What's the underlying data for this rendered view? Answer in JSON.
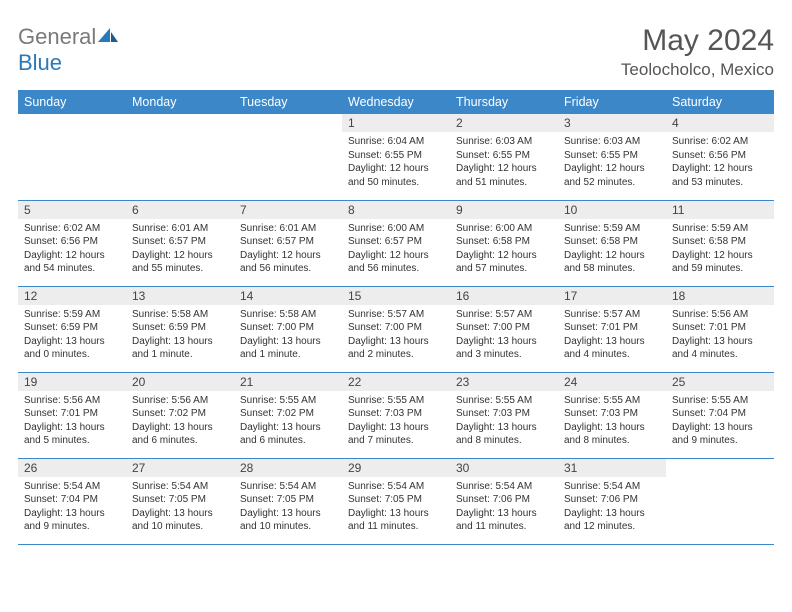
{
  "logo": {
    "textGray": "General",
    "textBlue": "Blue"
  },
  "title": "May 2024",
  "subtitle": "Teolocholco, Mexico",
  "colors": {
    "headerBg": "#3b87c8",
    "dayNumBg": "#ededed",
    "borderColor": "#3b87c8"
  },
  "weekdays": [
    "Sunday",
    "Monday",
    "Tuesday",
    "Wednesday",
    "Thursday",
    "Friday",
    "Saturday"
  ],
  "weeks": [
    [
      null,
      null,
      null,
      {
        "n": "1",
        "sr": "Sunrise: 6:04 AM",
        "ss": "Sunset: 6:55 PM",
        "d1": "Daylight: 12 hours",
        "d2": "and 50 minutes."
      },
      {
        "n": "2",
        "sr": "Sunrise: 6:03 AM",
        "ss": "Sunset: 6:55 PM",
        "d1": "Daylight: 12 hours",
        "d2": "and 51 minutes."
      },
      {
        "n": "3",
        "sr": "Sunrise: 6:03 AM",
        "ss": "Sunset: 6:55 PM",
        "d1": "Daylight: 12 hours",
        "d2": "and 52 minutes."
      },
      {
        "n": "4",
        "sr": "Sunrise: 6:02 AM",
        "ss": "Sunset: 6:56 PM",
        "d1": "Daylight: 12 hours",
        "d2": "and 53 minutes."
      }
    ],
    [
      {
        "n": "5",
        "sr": "Sunrise: 6:02 AM",
        "ss": "Sunset: 6:56 PM",
        "d1": "Daylight: 12 hours",
        "d2": "and 54 minutes."
      },
      {
        "n": "6",
        "sr": "Sunrise: 6:01 AM",
        "ss": "Sunset: 6:57 PM",
        "d1": "Daylight: 12 hours",
        "d2": "and 55 minutes."
      },
      {
        "n": "7",
        "sr": "Sunrise: 6:01 AM",
        "ss": "Sunset: 6:57 PM",
        "d1": "Daylight: 12 hours",
        "d2": "and 56 minutes."
      },
      {
        "n": "8",
        "sr": "Sunrise: 6:00 AM",
        "ss": "Sunset: 6:57 PM",
        "d1": "Daylight: 12 hours",
        "d2": "and 56 minutes."
      },
      {
        "n": "9",
        "sr": "Sunrise: 6:00 AM",
        "ss": "Sunset: 6:58 PM",
        "d1": "Daylight: 12 hours",
        "d2": "and 57 minutes."
      },
      {
        "n": "10",
        "sr": "Sunrise: 5:59 AM",
        "ss": "Sunset: 6:58 PM",
        "d1": "Daylight: 12 hours",
        "d2": "and 58 minutes."
      },
      {
        "n": "11",
        "sr": "Sunrise: 5:59 AM",
        "ss": "Sunset: 6:58 PM",
        "d1": "Daylight: 12 hours",
        "d2": "and 59 minutes."
      }
    ],
    [
      {
        "n": "12",
        "sr": "Sunrise: 5:59 AM",
        "ss": "Sunset: 6:59 PM",
        "d1": "Daylight: 13 hours",
        "d2": "and 0 minutes."
      },
      {
        "n": "13",
        "sr": "Sunrise: 5:58 AM",
        "ss": "Sunset: 6:59 PM",
        "d1": "Daylight: 13 hours",
        "d2": "and 1 minute."
      },
      {
        "n": "14",
        "sr": "Sunrise: 5:58 AM",
        "ss": "Sunset: 7:00 PM",
        "d1": "Daylight: 13 hours",
        "d2": "and 1 minute."
      },
      {
        "n": "15",
        "sr": "Sunrise: 5:57 AM",
        "ss": "Sunset: 7:00 PM",
        "d1": "Daylight: 13 hours",
        "d2": "and 2 minutes."
      },
      {
        "n": "16",
        "sr": "Sunrise: 5:57 AM",
        "ss": "Sunset: 7:00 PM",
        "d1": "Daylight: 13 hours",
        "d2": "and 3 minutes."
      },
      {
        "n": "17",
        "sr": "Sunrise: 5:57 AM",
        "ss": "Sunset: 7:01 PM",
        "d1": "Daylight: 13 hours",
        "d2": "and 4 minutes."
      },
      {
        "n": "18",
        "sr": "Sunrise: 5:56 AM",
        "ss": "Sunset: 7:01 PM",
        "d1": "Daylight: 13 hours",
        "d2": "and 4 minutes."
      }
    ],
    [
      {
        "n": "19",
        "sr": "Sunrise: 5:56 AM",
        "ss": "Sunset: 7:01 PM",
        "d1": "Daylight: 13 hours",
        "d2": "and 5 minutes."
      },
      {
        "n": "20",
        "sr": "Sunrise: 5:56 AM",
        "ss": "Sunset: 7:02 PM",
        "d1": "Daylight: 13 hours",
        "d2": "and 6 minutes."
      },
      {
        "n": "21",
        "sr": "Sunrise: 5:55 AM",
        "ss": "Sunset: 7:02 PM",
        "d1": "Daylight: 13 hours",
        "d2": "and 6 minutes."
      },
      {
        "n": "22",
        "sr": "Sunrise: 5:55 AM",
        "ss": "Sunset: 7:03 PM",
        "d1": "Daylight: 13 hours",
        "d2": "and 7 minutes."
      },
      {
        "n": "23",
        "sr": "Sunrise: 5:55 AM",
        "ss": "Sunset: 7:03 PM",
        "d1": "Daylight: 13 hours",
        "d2": "and 8 minutes."
      },
      {
        "n": "24",
        "sr": "Sunrise: 5:55 AM",
        "ss": "Sunset: 7:03 PM",
        "d1": "Daylight: 13 hours",
        "d2": "and 8 minutes."
      },
      {
        "n": "25",
        "sr": "Sunrise: 5:55 AM",
        "ss": "Sunset: 7:04 PM",
        "d1": "Daylight: 13 hours",
        "d2": "and 9 minutes."
      }
    ],
    [
      {
        "n": "26",
        "sr": "Sunrise: 5:54 AM",
        "ss": "Sunset: 7:04 PM",
        "d1": "Daylight: 13 hours",
        "d2": "and 9 minutes."
      },
      {
        "n": "27",
        "sr": "Sunrise: 5:54 AM",
        "ss": "Sunset: 7:05 PM",
        "d1": "Daylight: 13 hours",
        "d2": "and 10 minutes."
      },
      {
        "n": "28",
        "sr": "Sunrise: 5:54 AM",
        "ss": "Sunset: 7:05 PM",
        "d1": "Daylight: 13 hours",
        "d2": "and 10 minutes."
      },
      {
        "n": "29",
        "sr": "Sunrise: 5:54 AM",
        "ss": "Sunset: 7:05 PM",
        "d1": "Daylight: 13 hours",
        "d2": "and 11 minutes."
      },
      {
        "n": "30",
        "sr": "Sunrise: 5:54 AM",
        "ss": "Sunset: 7:06 PM",
        "d1": "Daylight: 13 hours",
        "d2": "and 11 minutes."
      },
      {
        "n": "31",
        "sr": "Sunrise: 5:54 AM",
        "ss": "Sunset: 7:06 PM",
        "d1": "Daylight: 13 hours",
        "d2": "and 12 minutes."
      },
      null
    ]
  ]
}
